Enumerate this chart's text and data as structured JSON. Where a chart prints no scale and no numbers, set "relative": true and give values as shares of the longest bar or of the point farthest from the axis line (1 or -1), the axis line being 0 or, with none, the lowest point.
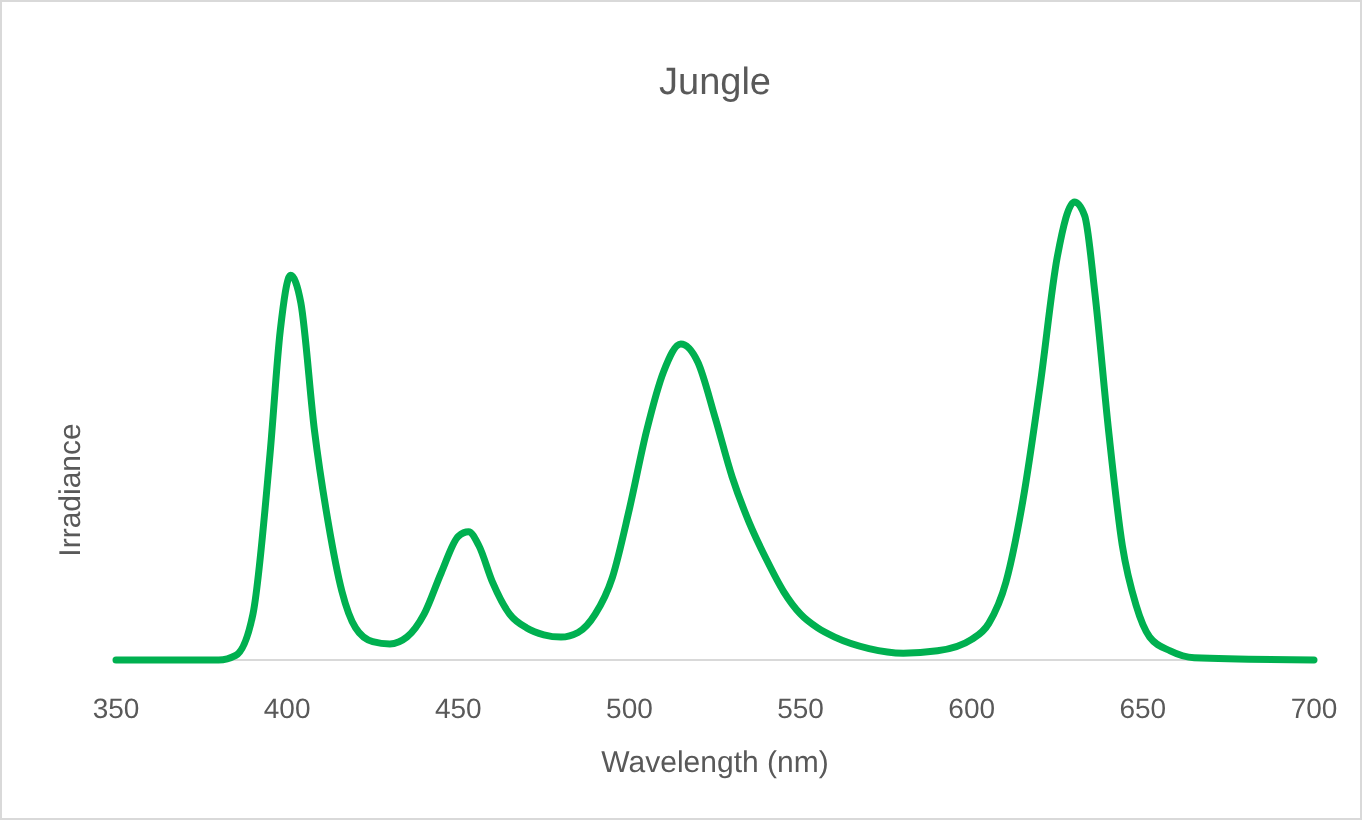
{
  "chart_data": {
    "type": "line",
    "title": "Jungle",
    "xlabel": "Wavelength (nm)",
    "ylabel": "Irradiance",
    "relative": true,
    "grid": false,
    "marker": "none",
    "line_style": "solid",
    "xlim": [
      350,
      700
    ],
    "xticks": [
      350,
      400,
      450,
      500,
      550,
      600,
      650,
      700
    ],
    "series": [
      {
        "color": "#00b050",
        "x": [
          350,
          380,
          385,
          390,
          395,
          398,
          401,
          404,
          408,
          412,
          416,
          420,
          425,
          430,
          435,
          440,
          445,
          450,
          453,
          456,
          460,
          465,
          470,
          475,
          480,
          485,
          490,
          495,
          500,
          505,
          510,
          515,
          520,
          525,
          530,
          535,
          540,
          545,
          550,
          555,
          560,
          570,
          580,
          590,
          600,
          605,
          610,
          615,
          620,
          625,
          630,
          633,
          636,
          640,
          644,
          648,
          652,
          658,
          665,
          700
        ],
        "values": [
          0,
          0,
          0.01,
          0.1,
          0.45,
          0.72,
          0.84,
          0.78,
          0.5,
          0.3,
          0.15,
          0.07,
          0.04,
          0.035,
          0.05,
          0.1,
          0.19,
          0.27,
          0.28,
          0.25,
          0.17,
          0.1,
          0.07,
          0.055,
          0.05,
          0.06,
          0.1,
          0.18,
          0.33,
          0.5,
          0.63,
          0.69,
          0.65,
          0.53,
          0.4,
          0.3,
          0.22,
          0.15,
          0.1,
          0.07,
          0.05,
          0.025,
          0.015,
          0.02,
          0.045,
          0.08,
          0.17,
          0.35,
          0.6,
          0.88,
          1,
          0.97,
          0.8,
          0.5,
          0.25,
          0.12,
          0.05,
          0.02,
          0.005,
          0
        ]
      }
    ]
  }
}
